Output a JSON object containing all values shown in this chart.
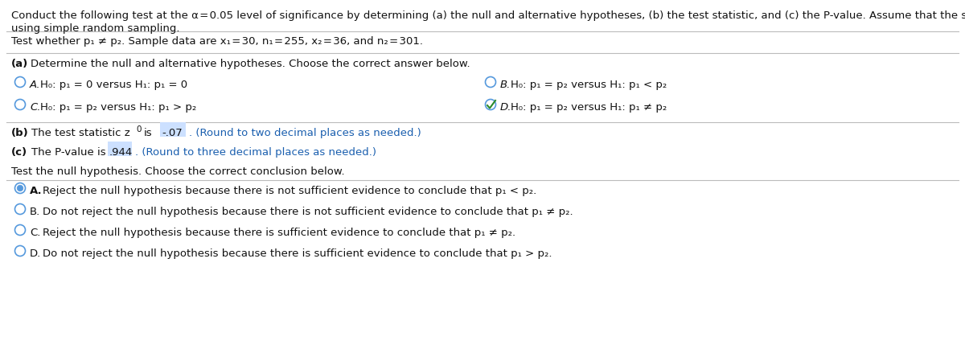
{
  "bg_color": "#ffffff",
  "text_color": "#111111",
  "blue_text_color": "#1a5faf",
  "radio_color": "#5599dd",
  "check_color": "#2a8a2a",
  "highlight_color": "#cce0ff",
  "header_line1": "Conduct the following test at the α = 0.05 level of significance by determining (a) the null and alternative hypotheses, (b) the test statistic, and (c) the P-value. Assume that the samples were obtained independently",
  "header_line2": "using simple random sampling.",
  "test_line": "Test whether p₁ ≠ p₂. Sample data are x₁ = 30, n₁ = 255, x₂ = 36, and n₂ = 301.",
  "part_a_header": "(a) Determine the null and alternative hypotheses. Choose the correct answer below.",
  "optA": "H₀: p₁ = 0 versus H₁: p₁ = 0",
  "optB": "H₀: p₁ = p₂ versus H₁: p₁ < p₂",
  "optC": "H₀: p₁ = p₂ versus H₁: p₁ > p₂",
  "optD": "H₀: p₁ = p₂ versus H₁: p₁ ≠ p₂",
  "part_b_main": "(b) The test statistic z₀ is",
  "part_b_value": "-.07",
  "part_b_rest": ". (Round to two decimal places as needed.)",
  "part_c_main": "(c) The P-value is",
  "part_c_value": ".944",
  "part_c_rest": ". (Round to three decimal places as needed.)",
  "conclusion_header": "Test the null hypothesis. Choose the correct conclusion below.",
  "conclA": "Reject the null hypothesis because there is not sufficient evidence to conclude that p₁ < p₂.",
  "conclB": "Do not reject the null hypothesis because there is not sufficient evidence to conclude that p₁ ≠ p₂.",
  "conclC": "Reject the null hypothesis because there is sufficient evidence to conclude that p₁ ≠ p₂.",
  "conclD": "Do not reject the null hypothesis because there is sufficient evidence to conclude that p₁ > p₂.",
  "fs": 9.5,
  "fs_header": 9.5
}
